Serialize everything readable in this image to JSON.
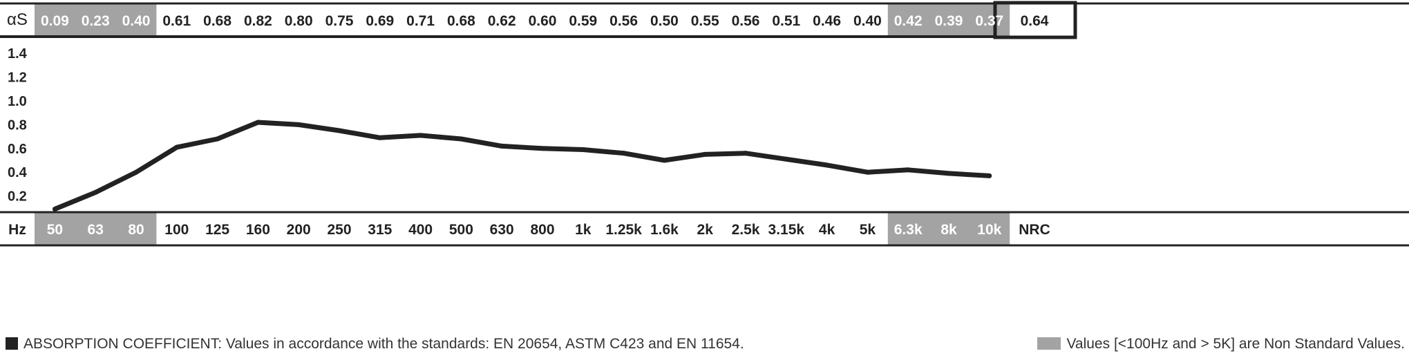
{
  "colors": {
    "ink": "#222222",
    "non_standard_fill": "#a3a3a3",
    "standard_fill": "#ffffff",
    "highlight_text": "#ffffff"
  },
  "chart_data": {
    "type": "line",
    "row_header_top": "αS",
    "row_header_bottom": "Hz",
    "summary_label": "NRC",
    "summary_value": "0.64",
    "categories": [
      "50",
      "63",
      "80",
      "100",
      "125",
      "160",
      "200",
      "250",
      "315",
      "400",
      "500",
      "630",
      "800",
      "1k",
      "1.25k",
      "1.6k",
      "2k",
      "2.5k",
      "3.15k",
      "4k",
      "5k",
      "6.3k",
      "8k",
      "10k"
    ],
    "values": [
      0.09,
      0.23,
      0.4,
      0.61,
      0.68,
      0.82,
      0.8,
      0.75,
      0.69,
      0.71,
      0.68,
      0.62,
      0.6,
      0.59,
      0.56,
      0.5,
      0.55,
      0.56,
      0.51,
      0.46,
      0.4,
      0.42,
      0.39,
      0.37
    ],
    "value_labels": [
      "0.09",
      "0.23",
      "0.40",
      "0.61",
      "0.68",
      "0.82",
      "0.80",
      "0.75",
      "0.69",
      "0.71",
      "0.68",
      "0.62",
      "0.60",
      "0.59",
      "0.56",
      "0.50",
      "0.55",
      "0.56",
      "0.51",
      "0.46",
      "0.40",
      "0.42",
      "0.39",
      "0.37"
    ],
    "non_standard": [
      true,
      true,
      true,
      false,
      false,
      false,
      false,
      false,
      false,
      false,
      false,
      false,
      false,
      false,
      false,
      false,
      false,
      false,
      false,
      false,
      false,
      true,
      true,
      true
    ],
    "yticks": [
      "1.4",
      "1.2",
      "1.0",
      "0.8",
      "0.6",
      "0.4",
      "0.2"
    ],
    "ytick_values": [
      1.4,
      1.2,
      1.0,
      0.8,
      0.6,
      0.4,
      0.2
    ],
    "ylim": [
      0,
      1.5
    ],
    "grid": false,
    "legend": {
      "left_text": "ABSORPTION COEFFICIENT: Values in accordance with the standards: EN 20654, ASTM C423 and EN 11654.",
      "right_text": "Values [<100Hz and > 5K] are Non Standard Values."
    }
  }
}
